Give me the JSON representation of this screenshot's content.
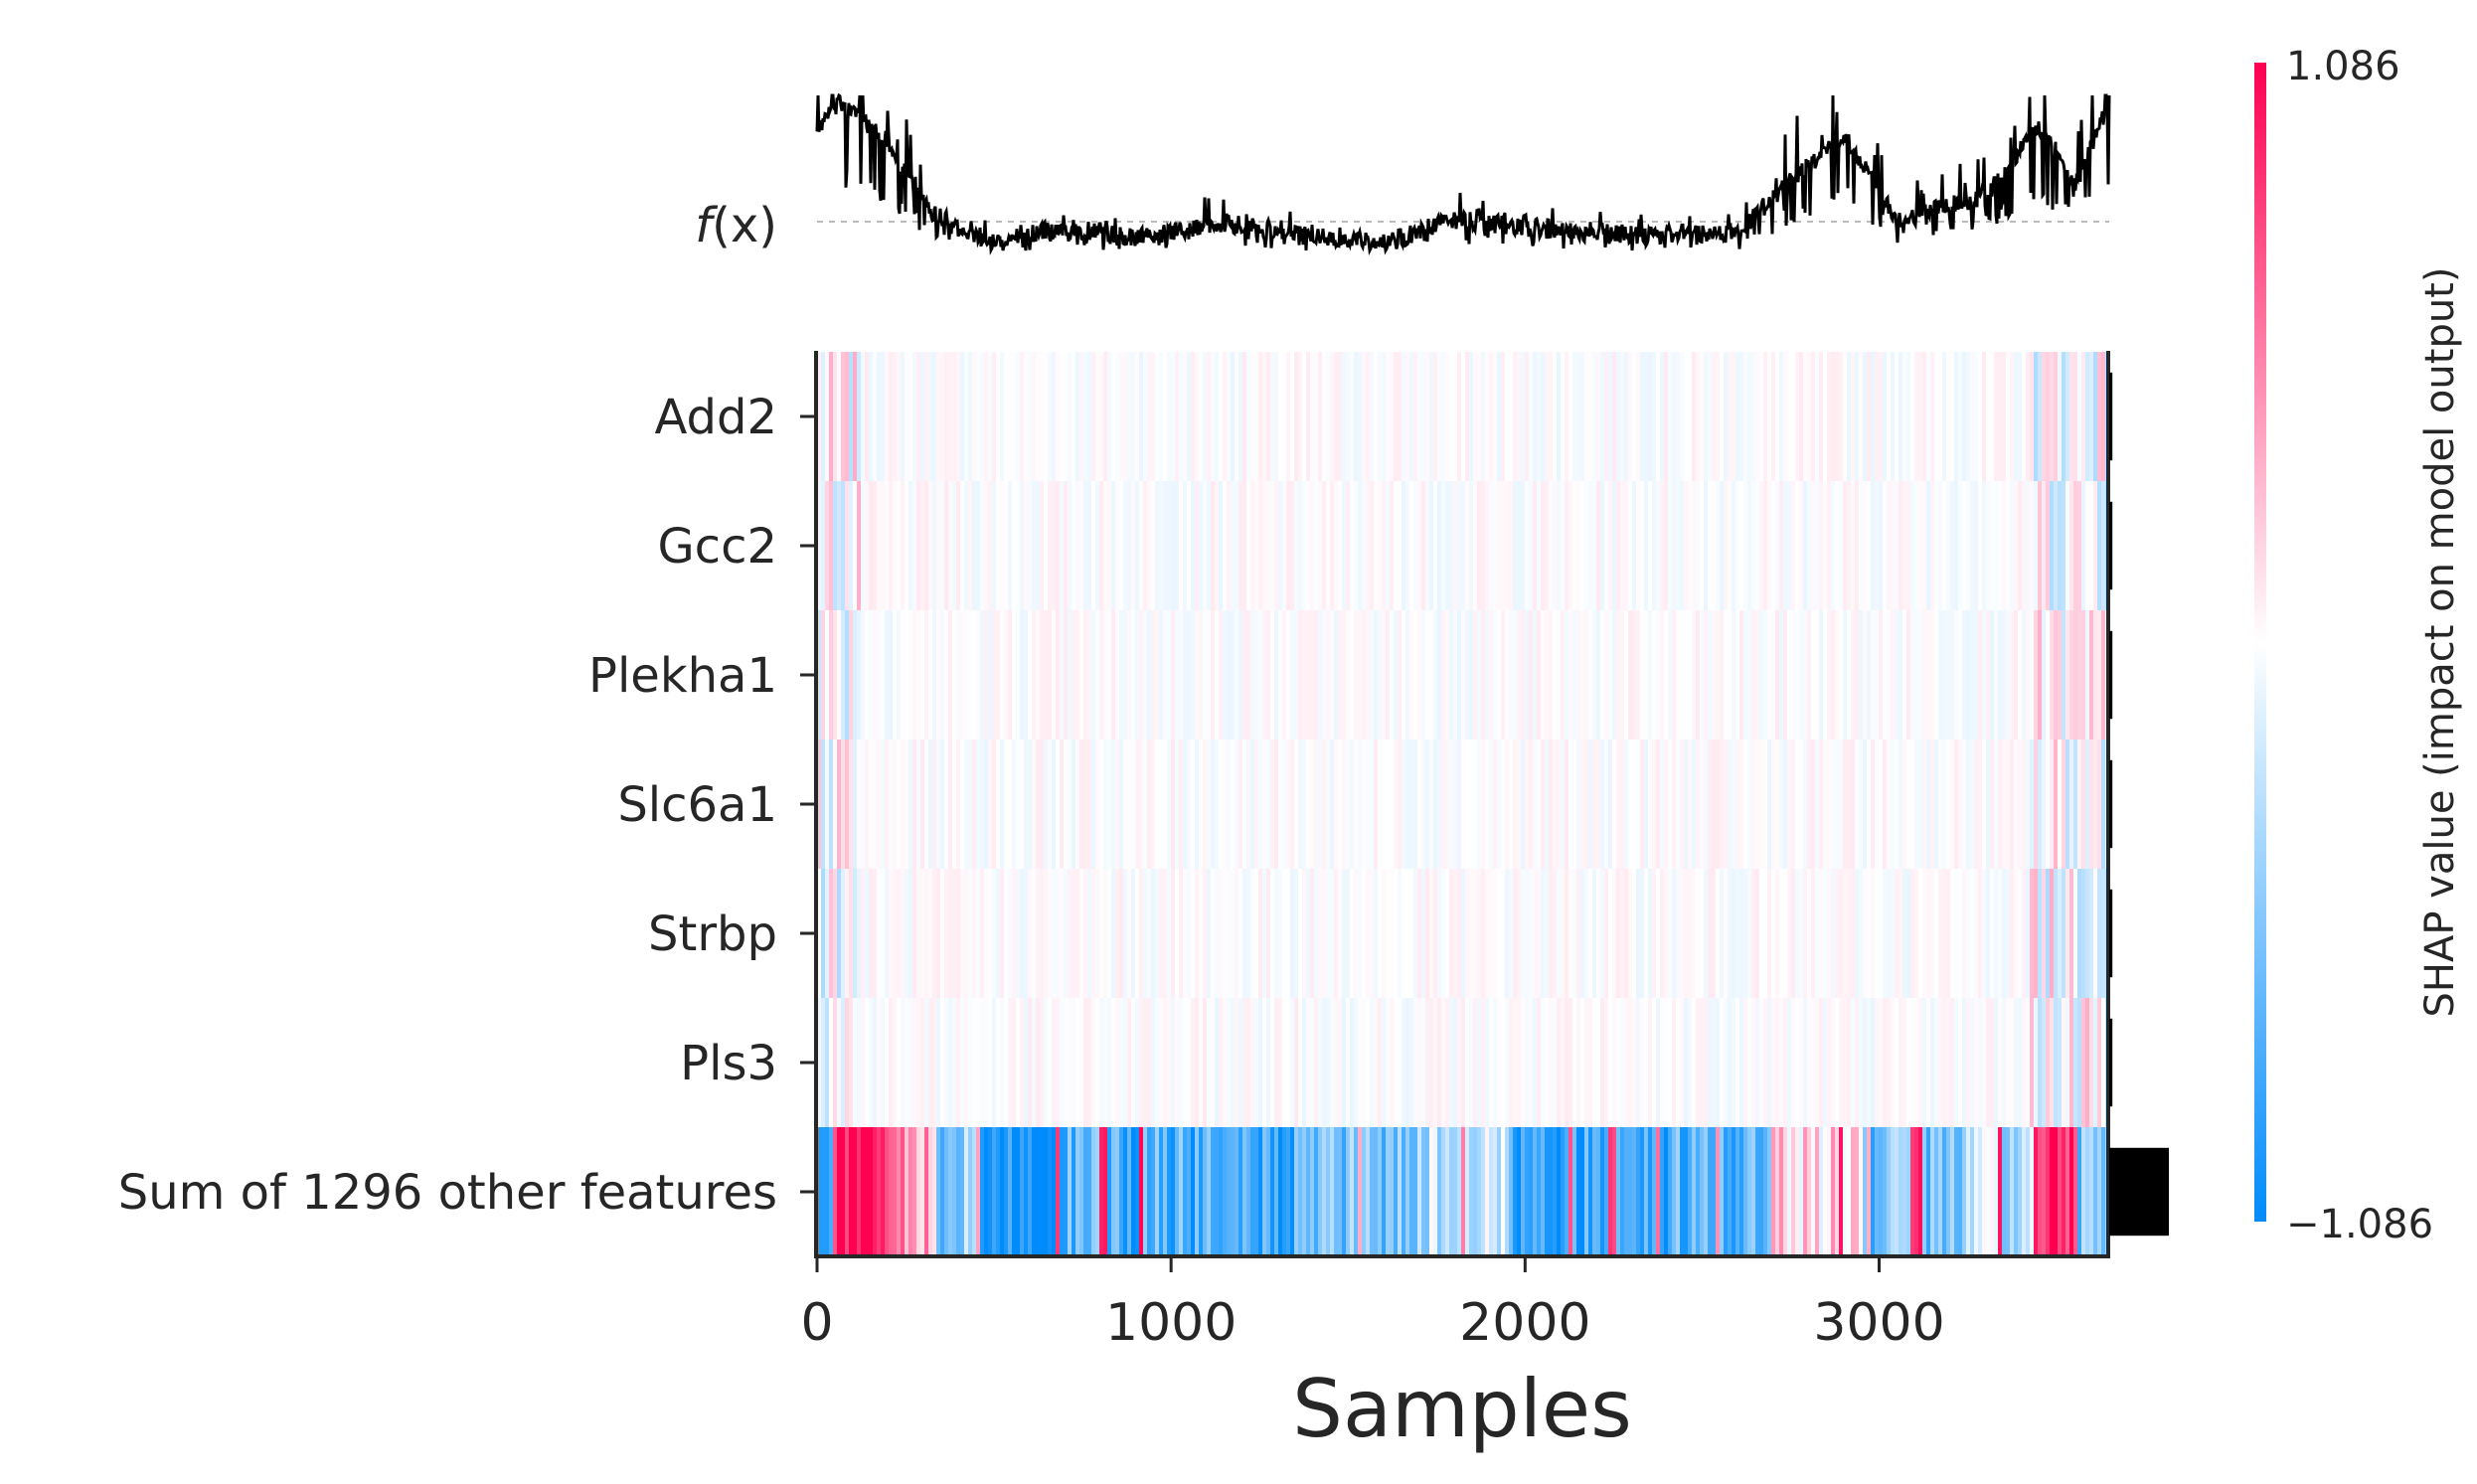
{
  "chart_data": {
    "type": "heatmap",
    "title": "",
    "xlabel": "Samples",
    "xlim": [
      0,
      3650
    ],
    "xticks": [
      "0",
      "1000",
      "2000",
      "3000"
    ],
    "xtick_values": [
      0,
      1000,
      2000,
      3000
    ],
    "fx_label_prefix": "f",
    "fx_label_arg": "(x)",
    "features": [
      "Add2",
      "Gcc2",
      "Plekha1",
      "Slc6a1",
      "Strbp",
      "Pls3",
      "Sum of 1296 other features"
    ],
    "feature_importance": [
      0.05,
      0.05,
      0.05,
      0.05,
      0.05,
      0.05,
      0.95
    ],
    "n_samples": 3650,
    "colorbar": {
      "label": "SHAP value (impact on model output)",
      "max_label": "1.086",
      "min_label": "−1.086",
      "vmin": -1.086,
      "vmax": 1.086,
      "color_high": "#ff0051",
      "color_mid": "#ffffff",
      "color_low": "#008bfb"
    },
    "fx_profile": [
      {
        "x": 0,
        "y": 0.8
      },
      {
        "x": 60,
        "y": 0.95
      },
      {
        "x": 120,
        "y": 0.85
      },
      {
        "x": 200,
        "y": 0.7
      },
      {
        "x": 320,
        "y": 0.25
      },
      {
        "x": 500,
        "y": 0.05
      },
      {
        "x": 700,
        "y": 0.15
      },
      {
        "x": 900,
        "y": 0.08
      },
      {
        "x": 1150,
        "y": 0.18
      },
      {
        "x": 1400,
        "y": 0.1
      },
      {
        "x": 1600,
        "y": 0.05
      },
      {
        "x": 1800,
        "y": 0.2
      },
      {
        "x": 2000,
        "y": 0.15
      },
      {
        "x": 2300,
        "y": 0.1
      },
      {
        "x": 2600,
        "y": 0.12
      },
      {
        "x": 2800,
        "y": 0.55
      },
      {
        "x": 2900,
        "y": 0.75
      },
      {
        "x": 3050,
        "y": 0.2
      },
      {
        "x": 3300,
        "y": 0.35
      },
      {
        "x": 3450,
        "y": 0.8
      },
      {
        "x": 3550,
        "y": 0.4
      },
      {
        "x": 3650,
        "y": 0.95
      }
    ],
    "others_segments": [
      {
        "from": 0,
        "to": 40,
        "v": -0.6
      },
      {
        "from": 40,
        "to": 200,
        "v": 1.0
      },
      {
        "from": 200,
        "to": 340,
        "v": 0.4
      },
      {
        "from": 340,
        "to": 460,
        "v": -0.5
      },
      {
        "from": 460,
        "to": 700,
        "v": -1.0
      },
      {
        "from": 700,
        "to": 1100,
        "v": -0.75
      },
      {
        "from": 1100,
        "to": 1400,
        "v": -0.8
      },
      {
        "from": 1400,
        "to": 1700,
        "v": -0.6
      },
      {
        "from": 1700,
        "to": 1950,
        "v": -0.25
      },
      {
        "from": 1950,
        "to": 2400,
        "v": -0.85
      },
      {
        "from": 2400,
        "to": 2700,
        "v": -0.7
      },
      {
        "from": 2700,
        "to": 2950,
        "v": 0.2
      },
      {
        "from": 2950,
        "to": 3250,
        "v": -0.6
      },
      {
        "from": 3250,
        "to": 3450,
        "v": -0.3
      },
      {
        "from": 3450,
        "to": 3560,
        "v": 1.0
      },
      {
        "from": 3560,
        "to": 3650,
        "v": -0.5
      }
    ]
  }
}
